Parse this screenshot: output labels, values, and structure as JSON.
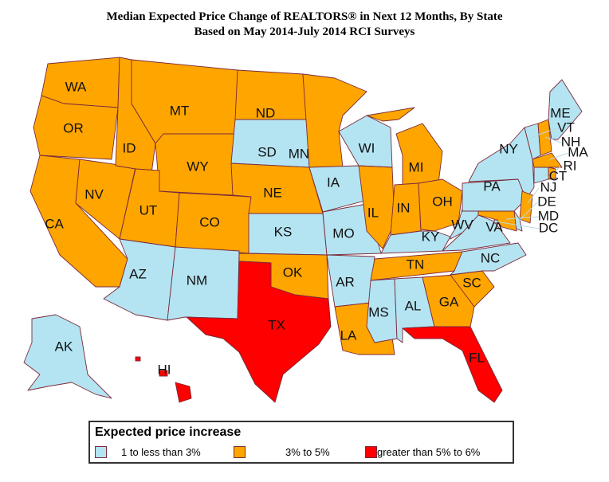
{
  "title": {
    "line1": "Median Expected Price Change of REALTORS® in Next 12 Months, By State",
    "line2": "Based on May 2014-July 2014 RCI Surveys"
  },
  "colors": {
    "low": "#b4e4f2",
    "mid": "#ffa500",
    "high": "#ff0000"
  },
  "legend": {
    "title": "Expected price increase",
    "items": [
      {
        "key": "low",
        "label": "1 to less than 3%"
      },
      {
        "key": "mid",
        "label": "3% to 5%"
      },
      {
        "key": "high",
        "label": "greater than 5% to 6%"
      }
    ]
  },
  "states": {
    "WA": "mid",
    "OR": "mid",
    "CA": "mid",
    "NV": "mid",
    "ID": "mid",
    "MT": "mid",
    "WY": "mid",
    "UT": "mid",
    "CO": "mid",
    "AZ": "low",
    "NM": "low",
    "ND": "mid",
    "SD": "low",
    "NE": "mid",
    "KS": "low",
    "OK": "mid",
    "TX": "high",
    "MN": "mid",
    "IA": "low",
    "MO": "low",
    "AR": "low",
    "LA": "mid",
    "WI": "low",
    "IL": "mid",
    "MI": "mid",
    "IN": "mid",
    "OH": "mid",
    "KY": "low",
    "TN": "mid",
    "MS": "low",
    "AL": "low",
    "GA": "mid",
    "FL": "high",
    "SC": "mid",
    "NC": "low",
    "VA": "low",
    "WV": "low",
    "PA": "low",
    "NY": "low",
    "NJ": "mid",
    "DE": "low",
    "MD": "mid",
    "DC": "low",
    "VT": "low",
    "NH": "mid",
    "ME": "low",
    "MA": "mid",
    "CT": "low",
    "RI": "mid",
    "AK": "low",
    "HI": "high"
  }
}
